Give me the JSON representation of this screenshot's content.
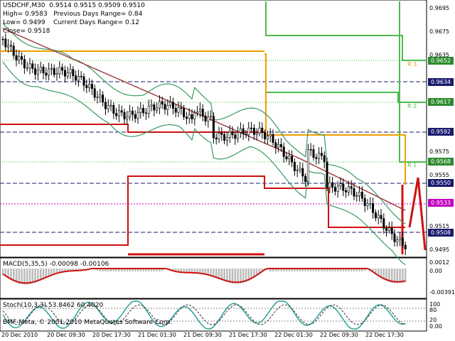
{
  "header": {
    "symbol_line": "USDCHF,M30  0.9514 0.9515 0.9509 0.9510",
    "high_line": "High= 0.9583   Previous Days Range= 0.84",
    "low_line": "Low= 0.9499    Current Days Range= 0.12",
    "close_line": "Close= 0.9518"
  },
  "pivot_labels": [
    "R 3",
    "R 2",
    "R 1"
  ],
  "price_axis": {
    "ticks": [
      "0.9695",
      "0.9675",
      "0.9635",
      "0.9575",
      "0.9555",
      "0.9515",
      "0.9495"
    ],
    "tags": [
      {
        "label": "0.9652",
        "color": "#2e8b2e"
      },
      {
        "label": "0.9634",
        "color": "#1a1a6e"
      },
      {
        "label": "0.9617",
        "color": "#2e8b2e"
      },
      {
        "label": "0.9592",
        "color": "#1a1a6e"
      },
      {
        "label": "0.9568",
        "color": "#2e8b2e"
      },
      {
        "label": "0.9550",
        "color": "#1a1a6e"
      },
      {
        "label": "0.9533",
        "color": "#c000c0"
      },
      {
        "label": "0.9508",
        "color": "#1a1a6e"
      }
    ]
  },
  "macd": {
    "title": "MACD(5,35,5) -0.00098 -0.00106",
    "ticks": [
      "0.0012",
      "0.00",
      "-0.00391"
    ]
  },
  "stoch": {
    "title": "Stoch(10,3,3) 53.8462 60.4020",
    "ticks": [
      "100",
      "80",
      "20",
      "0.00"
    ],
    "copyright": "BMF-Meta, © 2001-2010 MetaQuotes Software Corp."
  },
  "time_axis": [
    "20 Dec 2010",
    "20 Dec 09:30",
    "20 Dec 17:30",
    "21 Dec 01:30",
    "21 Dec 09:30",
    "21 Dec 17:30",
    "22 Dec 01:30",
    "22 Dec 09:30",
    "22 Dec 17:30"
  ],
  "colors": {
    "green_pivot": "#4cbb4c",
    "orange_pivot": "#f0a000",
    "red_level": "#d01010",
    "navy_dash": "#1a1a6e",
    "magenta_dash": "#c000c0",
    "ma_brown": "#a04040",
    "bollinger": "#3a9a60",
    "candles": "#000000"
  }
}
